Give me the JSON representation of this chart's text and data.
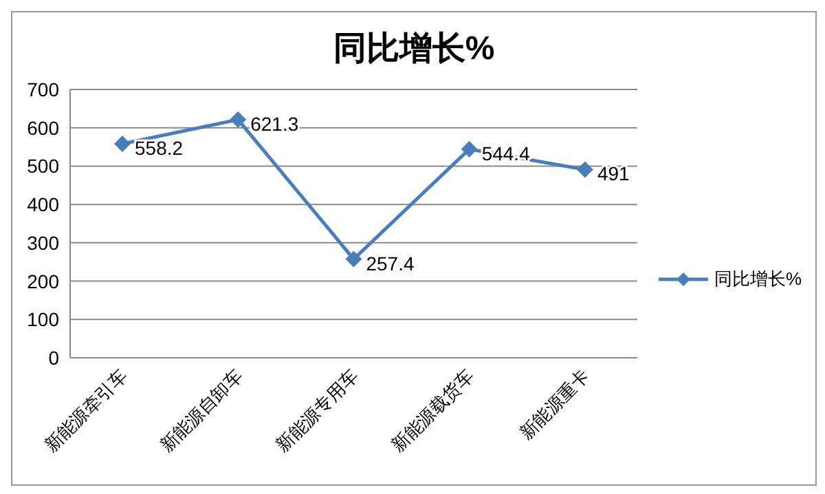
{
  "chart_data": {
    "type": "line",
    "title": "同比增长%",
    "categories": [
      "新能源牵引车",
      "新能源自卸车",
      "新能源专用车",
      "新能源载货车",
      "新能源重卡"
    ],
    "series": [
      {
        "name": "同比增长%",
        "color": "#4a7ebb",
        "values": [
          558.2,
          621.3,
          257.4,
          544.4,
          491
        ]
      }
    ],
    "ylim": [
      0,
      700
    ],
    "yticks": [
      0,
      100,
      200,
      300,
      400,
      500,
      600,
      700
    ],
    "grid": "y",
    "legend": "right",
    "marker": "diamond",
    "line_style": "solid",
    "data_labels": true
  }
}
